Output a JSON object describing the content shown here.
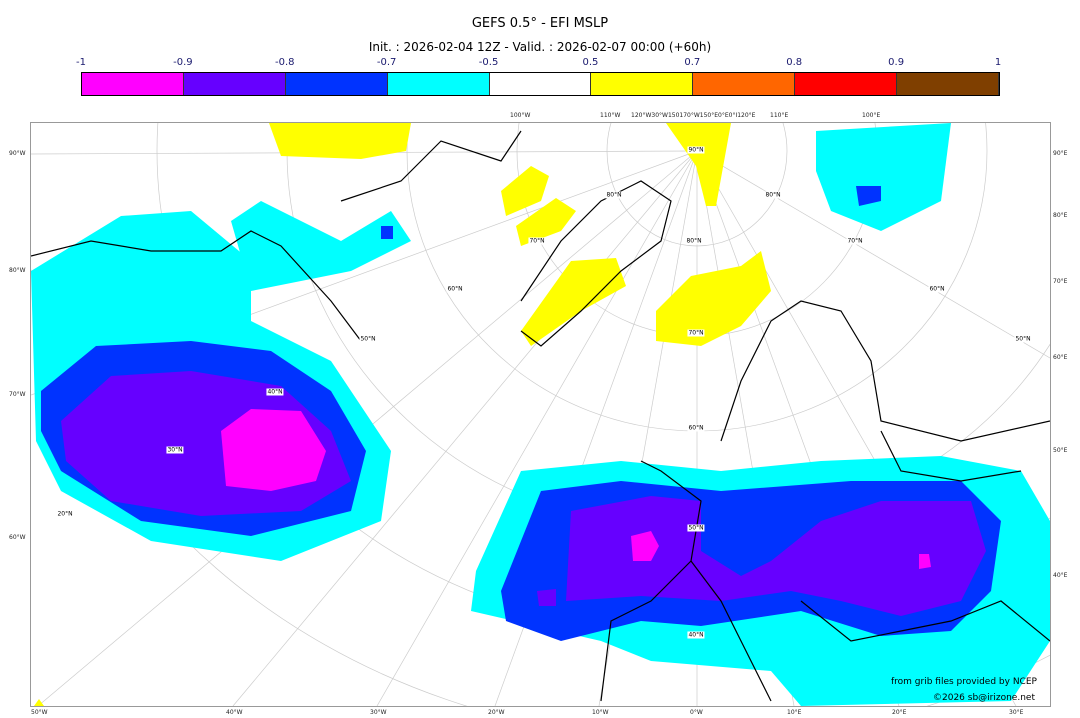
{
  "title": "GEFS 0.5° - EFI MSLP",
  "subtitle": "Init. : 2026-02-04 12Z - Valid. : 2026-02-07 00:00 (+60h)",
  "colorbar": {
    "ticks": [
      "-1",
      "-0.9",
      "-0.8",
      "-0.7",
      "-0.5",
      "0.5",
      "0.7",
      "0.8",
      "0.9",
      "1"
    ],
    "colors": [
      "#ff00ff",
      "#6600ff",
      "#0033ff",
      "#00ffff",
      "#ffffff",
      "#ffff00",
      "#ff6600",
      "#ff0000",
      "#7f3f00"
    ]
  },
  "axes": {
    "left": [
      "90°W",
      "80°W",
      "70°W",
      "60°W"
    ],
    "right": [
      "90°E",
      "80°E",
      "70°E",
      "60°E",
      "50°E",
      "40°E"
    ],
    "bottom": [
      "50°W",
      "40°W",
      "30°W",
      "20°W",
      "10°W",
      "0°W",
      "10°E",
      "20°E",
      "30°E"
    ],
    "top": [
      "100°W",
      "110°W",
      "120°W30°W150170°W150°E0°E0°I120°E",
      "110°E",
      "100°E"
    ]
  },
  "grid_labels": [
    "90°N",
    "80°N",
    "70°N",
    "60°N",
    "50°N",
    "40°N",
    "30°N",
    "20°N",
    "80°N",
    "70°N",
    "60°N",
    "50°N",
    "40°N",
    "80°N",
    "70°N",
    "60°N",
    "50°N"
  ],
  "credits": {
    "line1": "from grib files provided by NCEP",
    "line2": "©2026 sb@irizone.net"
  }
}
